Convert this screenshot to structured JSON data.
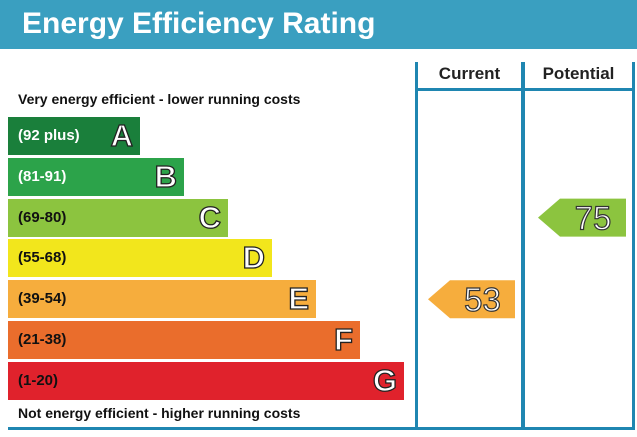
{
  "title": "Energy Efficiency Rating",
  "columns": {
    "current": "Current",
    "potential": "Potential"
  },
  "top_caption": "Very energy efficient - lower running costs",
  "bottom_caption": "Not energy efficient - higher running costs",
  "chart_data": {
    "type": "bar",
    "title": "Energy Efficiency Rating",
    "bands": [
      {
        "range": "(92 plus)",
        "letter": "A",
        "color": "#1a7f3b",
        "range_text_color": "#ffffff"
      },
      {
        "range": "(81-91)",
        "letter": "B",
        "color": "#2ca34a",
        "range_text_color": "#ffffff"
      },
      {
        "range": "(69-80)",
        "letter": "C",
        "color": "#8cc43f",
        "range_text_color": "#111111"
      },
      {
        "range": "(55-68)",
        "letter": "D",
        "color": "#f2e61c",
        "range_text_color": "#111111"
      },
      {
        "range": "(39-54)",
        "letter": "E",
        "color": "#f6ad3d",
        "range_text_color": "#111111"
      },
      {
        "range": "(21-38)",
        "letter": "F",
        "color": "#ea6d2c",
        "range_text_color": "#111111"
      },
      {
        "range": "(1-20)",
        "letter": "G",
        "color": "#e0222c",
        "range_text_color": "#111111"
      }
    ],
    "current": {
      "value": 53,
      "band": "E",
      "color": "#f6ad3d"
    },
    "potential": {
      "value": 75,
      "band": "C",
      "color": "#8cc43f"
    }
  }
}
